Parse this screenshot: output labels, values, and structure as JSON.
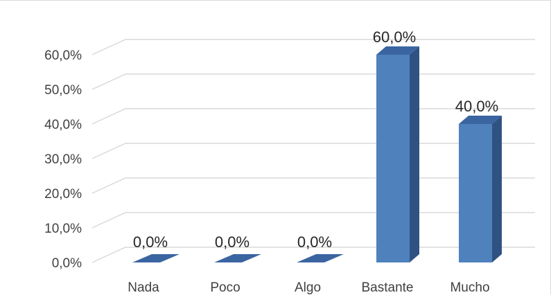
{
  "chart_data": {
    "type": "bar",
    "style": "3d-column",
    "title": "",
    "xlabel": "",
    "ylabel": "",
    "categories": [
      "Nada",
      "Poco",
      "Algo",
      "Bastante",
      "Mucho"
    ],
    "values": [
      0.0,
      0.0,
      0.0,
      60.0,
      40.0
    ],
    "data_labels": [
      "0,0%",
      "0,0%",
      "0,0%",
      "60,0%",
      "40,0%"
    ],
    "ylim": [
      0,
      60
    ],
    "y_ticks": [
      "0,0%",
      "10,0%",
      "20,0%",
      "30,0%",
      "40,0%",
      "50,0%",
      "60,0%"
    ],
    "grid": true,
    "legend": "none",
    "colors": {
      "bar_front": "#4f81bd",
      "bar_side": "#2f5282",
      "bar_top": "#3a65a0",
      "grid": "#d9d9d9"
    }
  }
}
